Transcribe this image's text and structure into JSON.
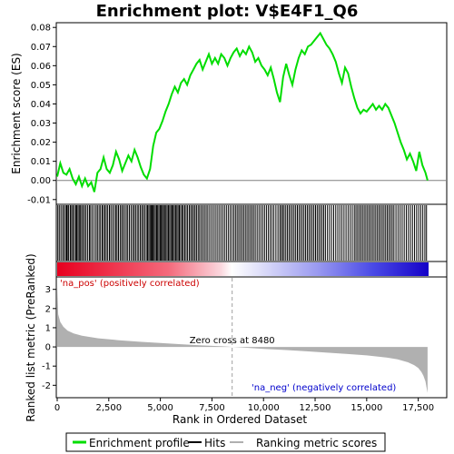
{
  "chart_data": {
    "type": "line",
    "title": "Enrichment plot: V$E4F1_Q6",
    "x_range": [
      0,
      18000
    ],
    "x_ticks": [
      0,
      2500,
      5000,
      7500,
      10000,
      12500,
      15000,
      17500
    ],
    "x_tick_labels": [
      "0",
      "2,500",
      "5,000",
      "7,500",
      "10,000",
      "12,500",
      "15,000",
      "17,500"
    ],
    "xlabel": "Rank in Ordered Dataset",
    "top_panel": {
      "ylabel": "Enrichment score (ES)",
      "ylim": [
        -0.012,
        0.082
      ],
      "y_ticks": [
        -0.01,
        0.0,
        0.01,
        0.02,
        0.03,
        0.04,
        0.05,
        0.06,
        0.07,
        0.08
      ],
      "y_tick_labels": [
        "-0.01",
        "0.00",
        "0.01",
        "0.02",
        "0.03",
        "0.04",
        "0.05",
        "0.06",
        "0.07",
        "0.08"
      ],
      "series": [
        {
          "name": "Enrichment profile",
          "color": "#00dd00",
          "x": [
            0,
            150,
            300,
            450,
            600,
            750,
            900,
            1050,
            1200,
            1350,
            1500,
            1650,
            1800,
            1950,
            2100,
            2250,
            2400,
            2550,
            2700,
            2850,
            3000,
            3150,
            3300,
            3450,
            3600,
            3750,
            3900,
            4050,
            4200,
            4350,
            4500,
            4650,
            4800,
            4950,
            5100,
            5250,
            5400,
            5550,
            5700,
            5850,
            6000,
            6150,
            6300,
            6450,
            6600,
            6750,
            6900,
            7050,
            7200,
            7350,
            7500,
            7650,
            7800,
            7950,
            8100,
            8250,
            8400,
            8550,
            8700,
            8850,
            9000,
            9150,
            9300,
            9450,
            9600,
            9750,
            9900,
            10050,
            10200,
            10350,
            10500,
            10650,
            10800,
            10950,
            11100,
            11250,
            11400,
            11550,
            11700,
            11850,
            12000,
            12150,
            12300,
            12450,
            12600,
            12750,
            12900,
            13050,
            13200,
            13350,
            13500,
            13650,
            13800,
            13950,
            14100,
            14250,
            14400,
            14550,
            14700,
            14850,
            15000,
            15150,
            15300,
            15450,
            15600,
            15750,
            15900,
            16050,
            16200,
            16350,
            16500,
            16650,
            16800,
            16950,
            17100,
            17250,
            17400,
            17550,
            17700,
            17850,
            17950
          ],
          "y": [
            0.002,
            0.009,
            0.004,
            0.003,
            0.006,
            0.001,
            -0.002,
            0.002,
            -0.003,
            0.001,
            -0.003,
            -0.001,
            -0.006,
            0.004,
            0.006,
            0.012,
            0.006,
            0.004,
            0.008,
            0.015,
            0.011,
            0.005,
            0.009,
            0.013,
            0.01,
            0.016,
            0.012,
            0.007,
            0.003,
            0.001,
            0.006,
            0.018,
            0.025,
            0.027,
            0.031,
            0.036,
            0.04,
            0.045,
            0.049,
            0.046,
            0.051,
            0.053,
            0.05,
            0.055,
            0.058,
            0.061,
            0.063,
            0.058,
            0.062,
            0.066,
            0.061,
            0.064,
            0.061,
            0.066,
            0.064,
            0.06,
            0.064,
            0.067,
            0.069,
            0.065,
            0.068,
            0.066,
            0.07,
            0.067,
            0.062,
            0.064,
            0.06,
            0.058,
            0.055,
            0.059,
            0.053,
            0.046,
            0.041,
            0.054,
            0.061,
            0.055,
            0.05,
            0.058,
            0.064,
            0.068,
            0.066,
            0.07,
            0.071,
            0.073,
            0.075,
            0.077,
            0.074,
            0.071,
            0.069,
            0.066,
            0.062,
            0.056,
            0.051,
            0.059,
            0.056,
            0.049,
            0.043,
            0.038,
            0.035,
            0.037,
            0.036,
            0.038,
            0.04,
            0.037,
            0.039,
            0.037,
            0.04,
            0.038,
            0.034,
            0.03,
            0.025,
            0.02,
            0.016,
            0.011,
            0.014,
            0.01,
            0.005,
            0.015,
            0.008,
            0.004,
            0.0
          ]
        }
      ]
    },
    "hits": [
      30,
      100,
      180,
      260,
      330,
      410,
      460,
      520,
      560,
      640,
      700,
      760,
      830,
      900,
      950,
      1010,
      1070,
      1130,
      1190,
      1260,
      1330,
      1400,
      1480,
      1560,
      1620,
      1700,
      1790,
      1880,
      1950,
      2030,
      2100,
      2180,
      2240,
      2310,
      2380,
      2450,
      2530,
      2600,
      2680,
      2760,
      2840,
      2900,
      2970,
      3050,
      3120,
      3190,
      3270,
      3350,
      3420,
      3500,
      3580,
      3660,
      3730,
      3800,
      3880,
      3950,
      4030,
      4100,
      4170,
      4240,
      4320,
      4380,
      4440,
      4500,
      4550,
      4600,
      4650,
      4700,
      4760,
      4820,
      4870,
      4930,
      4990,
      5040,
      5100,
      5150,
      5210,
      5270,
      5330,
      5390,
      5450,
      5510,
      5570,
      5620,
      5680,
      5740,
      5800,
      5860,
      5920,
      5980,
      6050,
      6110,
      6180,
      6250,
      6320,
      6400,
      6470,
      6540,
      6610,
      6680,
      6750,
      6830,
      6900,
      6980,
      7060,
      7140,
      7220,
      7300,
      7390,
      7480,
      7570,
      7660,
      7750,
      7840,
      7930,
      8020,
      8110,
      8200,
      8290,
      8380,
      8470,
      8560,
      8640,
      8720,
      8800,
      8880,
      8960,
      9040,
      9120,
      9200,
      9280,
      9360,
      9440,
      9520,
      9600,
      9690,
      9780,
      9870,
      9960,
      10050,
      10140,
      10230,
      10320,
      10410,
      10500,
      10600,
      10700,
      10790,
      10860,
      10930,
      11000,
      11080,
      11160,
      11240,
      11320,
      11400,
      11480,
      11560,
      11640,
      11720,
      11800,
      11880,
      11960,
      12040,
      12120,
      12200,
      12280,
      12360,
      12440,
      12520,
      12600,
      12680,
      12760,
      12840,
      12920,
      13000,
      13100,
      13200,
      13300,
      13400,
      13500,
      13600,
      13700,
      13800,
      13900,
      14000,
      14100,
      14200,
      14300,
      14400,
      14480,
      14560,
      14640,
      14720,
      14800,
      14880,
      14960,
      15040,
      15120,
      15200,
      15280,
      15360,
      15440,
      15520,
      15600,
      15680,
      15760,
      15840,
      15920,
      16000,
      16080,
      16160,
      16240,
      16320,
      16420,
      16520,
      16620,
      16720,
      16820,
      16920,
      17020,
      17120,
      17220,
      17320,
      17420,
      17520,
      17620,
      17720,
      17820,
      17900
    ],
    "bottom_panel": {
      "ylabel": "Ranked list metric (PreRanked)",
      "ylim": [
        -2.6,
        3.6
      ],
      "y_ticks": [
        -2,
        -1,
        0,
        1,
        2,
        3
      ],
      "y_tick_labels": [
        "-2",
        "-1",
        "0",
        "1",
        "2",
        "3"
      ],
      "metric_x": [
        0,
        50,
        150,
        300,
        500,
        800,
        1200,
        2000,
        3000,
        4000,
        5000,
        6000,
        7000,
        8000,
        8480,
        9000,
        10000,
        11000,
        12000,
        13000,
        14000,
        15000,
        16000,
        16500,
        17000,
        17300,
        17500,
        17650,
        17750,
        17850,
        17900,
        17950
      ],
      "metric_y": [
        3.2,
        1.7,
        1.3,
        1.05,
        0.85,
        0.7,
        0.58,
        0.45,
        0.35,
        0.27,
        0.2,
        0.14,
        0.08,
        0.03,
        0.0,
        -0.03,
        -0.1,
        -0.16,
        -0.22,
        -0.29,
        -0.36,
        -0.44,
        -0.56,
        -0.65,
        -0.8,
        -0.95,
        -1.1,
        -1.3,
        -1.5,
        -1.8,
        -2.1,
        -2.4
      ],
      "zero_cross": 8480,
      "zero_cross_label": "Zero cross at 8480",
      "pos_label": "'na_pos' (positively correlated)",
      "neg_label": "'na_neg' (negatively correlated)"
    },
    "legend": [
      "Enrichment profile",
      "Hits",
      "Ranking metric scores"
    ],
    "colors": {
      "profile": "#00dd00",
      "hits": "#000000",
      "metric": "#b0b0b0",
      "pos_label": "#cc0000",
      "neg_label": "#0000cc",
      "bar_pos": "#ff0000",
      "bar_neg": "#0000ff"
    }
  }
}
